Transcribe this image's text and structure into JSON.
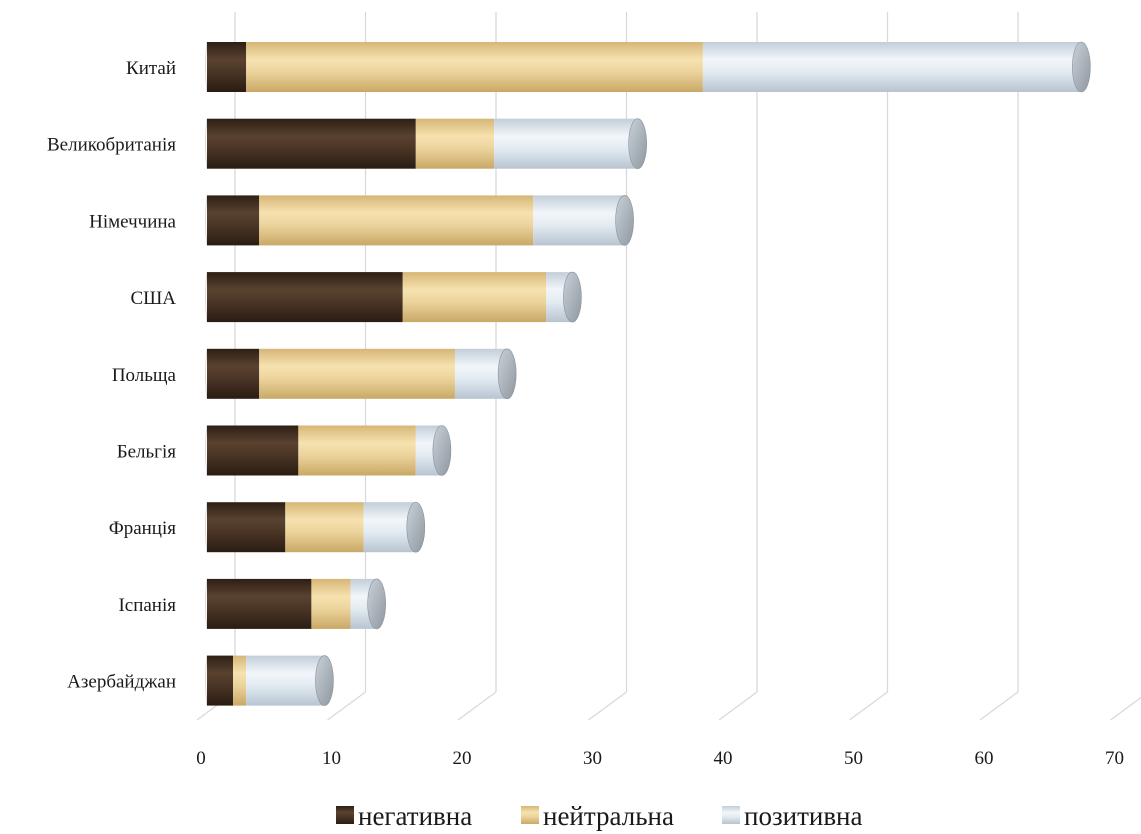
{
  "chart_data": {
    "type": "bar",
    "orientation": "horizontal",
    "stacked": true,
    "style": "3d-cylinder",
    "categories": [
      "Китай",
      "Великобританія",
      "Німеччина",
      "США",
      "Польща",
      "Бельгія",
      "Франція",
      "Іспанія",
      "Азербайджан"
    ],
    "series": [
      {
        "name": "негативна",
        "color": "#4a3526",
        "values": [
          3,
          16,
          4,
          15,
          4,
          7,
          6,
          8,
          2
        ]
      },
      {
        "name": "нейтральна",
        "color": "#e8cf95",
        "values": [
          35,
          6,
          21,
          11,
          15,
          9,
          6,
          3,
          1
        ]
      },
      {
        "name": "позитивна",
        "color": "#dce7f0",
        "values": [
          29,
          11,
          7,
          2,
          4,
          2,
          4,
          2,
          6
        ]
      }
    ],
    "x_ticks": [
      "0",
      "10",
      "20",
      "30",
      "40",
      "50",
      "60",
      "70"
    ],
    "xlim": [
      0,
      70
    ],
    "grid": true,
    "legend_position": "bottom",
    "title": "",
    "xlabel": "",
    "ylabel": ""
  }
}
